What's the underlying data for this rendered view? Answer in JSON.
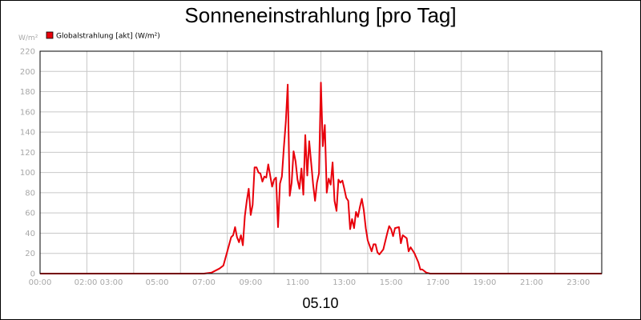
{
  "chart_data": {
    "type": "line",
    "title": "Sonneneinstrahlung [pro Tag]",
    "xlabel": "05.10",
    "ylabel": "W/m²",
    "ylim": [
      0,
      220
    ],
    "xlim": [
      "00:00",
      "24:00"
    ],
    "y_ticks": [
      "0",
      "20",
      "40",
      "60",
      "80",
      "100",
      "120",
      "140",
      "160",
      "180",
      "200",
      "220"
    ],
    "x_ticks": [
      "00:00",
      "02:00 03:00",
      "05:00",
      "07:00",
      "09:00",
      "11:00",
      "13:00",
      "15:00",
      "17:00",
      "19:00",
      "21:00",
      "23:00"
    ],
    "grid": true,
    "legend_position": "top-left",
    "series": [
      {
        "name": "Globalstrahlung [akt] (W/m²)",
        "color": "#e8000b",
        "points": [
          [
            "00:00",
            0
          ],
          [
            "07:00",
            0
          ],
          [
            "07:20",
            1
          ],
          [
            "07:40",
            5
          ],
          [
            "07:50",
            8
          ],
          [
            "08:00",
            22
          ],
          [
            "08:10",
            36
          ],
          [
            "08:15",
            38
          ],
          [
            "08:20",
            46
          ],
          [
            "08:25",
            36
          ],
          [
            "08:30",
            31
          ],
          [
            "08:35",
            38
          ],
          [
            "08:40",
            28
          ],
          [
            "08:45",
            57
          ],
          [
            "08:50",
            72
          ],
          [
            "08:55",
            84
          ],
          [
            "09:00",
            58
          ],
          [
            "09:05",
            68
          ],
          [
            "09:10",
            105
          ],
          [
            "09:15",
            105
          ],
          [
            "09:20",
            100
          ],
          [
            "09:25",
            99
          ],
          [
            "09:30",
            91
          ],
          [
            "09:35",
            96
          ],
          [
            "09:40",
            95
          ],
          [
            "09:45",
            108
          ],
          [
            "09:50",
            97
          ],
          [
            "09:55",
            86
          ],
          [
            "10:00",
            93
          ],
          [
            "10:05",
            95
          ],
          [
            "10:10",
            46
          ],
          [
            "10:15",
            89
          ],
          [
            "10:20",
            96
          ],
          [
            "10:25",
            125
          ],
          [
            "10:30",
            150
          ],
          [
            "10:35",
            187
          ],
          [
            "10:40",
            77
          ],
          [
            "10:45",
            90
          ],
          [
            "10:50",
            121
          ],
          [
            "10:55",
            111
          ],
          [
            "11:00",
            93
          ],
          [
            "11:05",
            84
          ],
          [
            "11:10",
            104
          ],
          [
            "11:15",
            78
          ],
          [
            "11:20",
            137
          ],
          [
            "11:25",
            97
          ],
          [
            "11:30",
            131
          ],
          [
            "11:35",
            110
          ],
          [
            "11:40",
            88
          ],
          [
            "11:45",
            72
          ],
          [
            "11:50",
            90
          ],
          [
            "11:55",
            99
          ],
          [
            "12:00",
            189
          ],
          [
            "12:05",
            126
          ],
          [
            "12:10",
            147
          ],
          [
            "12:15",
            80
          ],
          [
            "12:20",
            94
          ],
          [
            "12:25",
            88
          ],
          [
            "12:30",
            110
          ],
          [
            "12:35",
            72
          ],
          [
            "12:40",
            62
          ],
          [
            "12:45",
            93
          ],
          [
            "12:50",
            90
          ],
          [
            "12:55",
            92
          ],
          [
            "13:00",
            84
          ],
          [
            "13:05",
            75
          ],
          [
            "13:10",
            72
          ],
          [
            "13:15",
            44
          ],
          [
            "13:20",
            54
          ],
          [
            "13:25",
            45
          ],
          [
            "13:30",
            61
          ],
          [
            "13:35",
            56
          ],
          [
            "13:40",
            66
          ],
          [
            "13:45",
            74
          ],
          [
            "13:50",
            63
          ],
          [
            "13:55",
            45
          ],
          [
            "14:00",
            33
          ],
          [
            "14:10",
            22
          ],
          [
            "14:15",
            29
          ],
          [
            "14:20",
            29
          ],
          [
            "14:25",
            21
          ],
          [
            "14:30",
            19
          ],
          [
            "14:40",
            24
          ],
          [
            "14:50",
            40
          ],
          [
            "14:55",
            47
          ],
          [
            "15:00",
            44
          ],
          [
            "15:05",
            37
          ],
          [
            "15:10",
            45
          ],
          [
            "15:20",
            46
          ],
          [
            "15:25",
            30
          ],
          [
            "15:30",
            38
          ],
          [
            "15:40",
            35
          ],
          [
            "15:45",
            22
          ],
          [
            "15:50",
            26
          ],
          [
            "16:00",
            20
          ],
          [
            "16:10",
            11
          ],
          [
            "16:15",
            4
          ],
          [
            "16:20",
            4
          ],
          [
            "16:30",
            1
          ],
          [
            "16:40",
            0
          ],
          [
            "24:00",
            0
          ]
        ]
      }
    ]
  }
}
